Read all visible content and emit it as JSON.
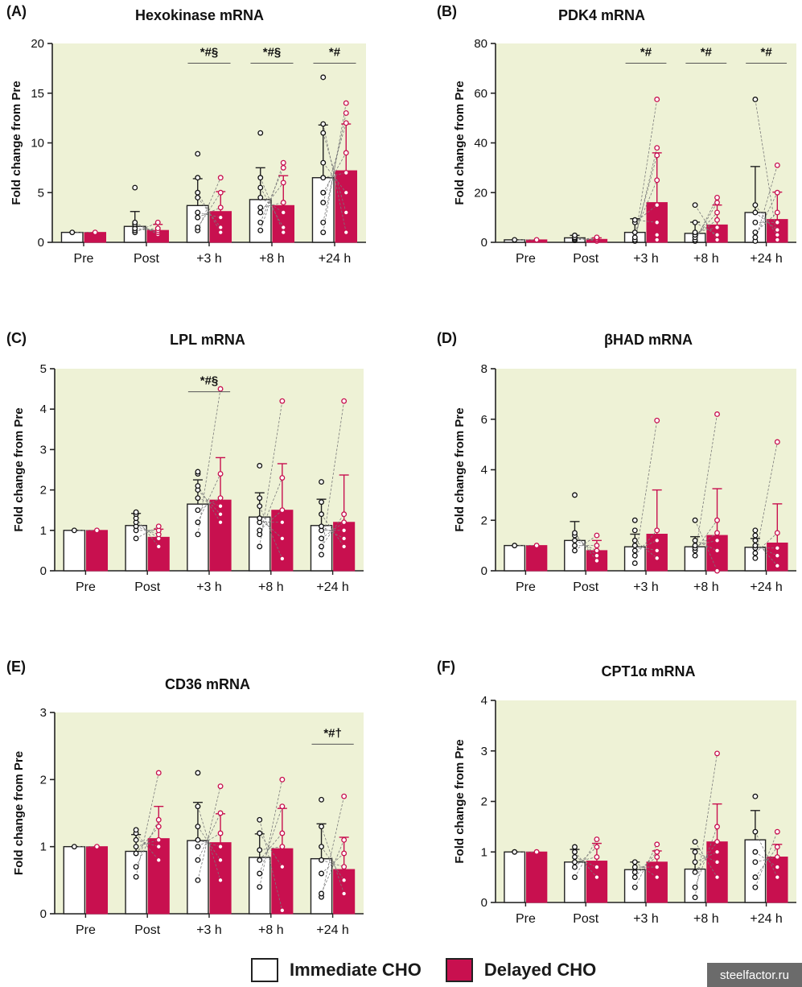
{
  "legend": {
    "immediate_label": "Immediate CHO",
    "delayed_label": "Delayed CHO",
    "immediate_color": "#ffffff",
    "delayed_color": "#c8104f"
  },
  "watermark": "steelfactor.ru",
  "colors": {
    "plot_background": "#eef2d6",
    "delayed": "#c8104f",
    "immediate_fill": "#ffffff",
    "axis": "#222222"
  },
  "chart_data": [
    {
      "id": "A",
      "panel_label": "(A)",
      "type": "bar",
      "title": "Hexokinase mRNA",
      "ylabel": "Fold change from Pre",
      "categories": [
        "Pre",
        "Post",
        "+3 h",
        "+8 h",
        "+24 h"
      ],
      "ylim": [
        0,
        20
      ],
      "yticks": [
        0,
        5,
        10,
        15,
        20
      ],
      "series": [
        {
          "name": "Immediate CHO",
          "values": [
            1.0,
            1.6,
            3.7,
            4.3,
            6.5
          ],
          "sd": [
            0,
            1.5,
            2.7,
            3.2,
            5.3
          ],
          "points": [
            [
              1.0
            ],
            [
              1.0,
              1.2,
              1.4,
              1.8,
              2.0,
              5.5
            ],
            [
              1.2,
              1.5,
              2.5,
              3.0,
              4.5,
              5.0,
              6.5,
              8.9
            ],
            [
              1.2,
              2.0,
              3.0,
              3.5,
              4.5,
              5.5,
              6.5,
              11.0
            ],
            [
              1.0,
              2.0,
              4.0,
              5.0,
              6.5,
              8.0,
              11.0,
              11.9,
              16.6
            ]
          ]
        },
        {
          "name": "Delayed CHO",
          "values": [
            1.0,
            1.2,
            3.1,
            3.7,
            7.2
          ],
          "sd": [
            0,
            0.6,
            2.0,
            3.0,
            4.7
          ],
          "points": [
            [
              1.0
            ],
            [
              0.8,
              1.0,
              1.2,
              1.4,
              2.0
            ],
            [
              1.0,
              1.5,
              2.5,
              3.5,
              5.0,
              6.5
            ],
            [
              1.0,
              1.5,
              3.0,
              4.0,
              6.0,
              7.5,
              8.0
            ],
            [
              1.0,
              3.0,
              5.0,
              7.0,
              9.0,
              12.0,
              13.0,
              14.0
            ]
          ]
        }
      ],
      "annotations": [
        {
          "text": "*#§",
          "category": 2,
          "y": 18.5
        },
        {
          "text": "*#§",
          "category": 3,
          "y": 18.5
        },
        {
          "text": "*#",
          "category": 4,
          "y": 18.5
        }
      ]
    },
    {
      "id": "B",
      "panel_label": "(B)",
      "type": "bar",
      "title": "PDK4 mRNA",
      "ylabel": "Fold change from Pre",
      "categories": [
        "Pre",
        "Post",
        "+3 h",
        "+8 h",
        "+24 h"
      ],
      "ylim": [
        0,
        80
      ],
      "yticks": [
        0,
        20,
        40,
        60,
        80
      ],
      "series": [
        {
          "name": "Immediate CHO",
          "values": [
            1.0,
            1.8,
            4.0,
            3.6,
            12.0
          ],
          "sd": [
            0,
            1.0,
            5.5,
            4.5,
            18.5
          ],
          "points": [
            [
              1.0
            ],
            [
              0.8,
              1.0,
              1.5,
              2.0,
              2.8
            ],
            [
              0.5,
              1.0,
              2.0,
              4.0,
              8.0,
              9.0
            ],
            [
              0.5,
              1.0,
              2.0,
              3.0,
              4.0,
              8.0,
              15.0
            ],
            [
              0.5,
              2.0,
              4.0,
              8.0,
              12.0,
              15.0,
              57.5
            ]
          ]
        },
        {
          "name": "Delayed CHO",
          "values": [
            1.0,
            1.2,
            16.0,
            7.0,
            9.2
          ],
          "sd": [
            0,
            0.6,
            20.0,
            8.0,
            11.0
          ],
          "points": [
            [
              1.0
            ],
            [
              0.5,
              1.0,
              1.5,
              2.0
            ],
            [
              1.0,
              3.0,
              8.0,
              15.0,
              25.0,
              35.0,
              38.0,
              57.5
            ],
            [
              1.0,
              3.0,
              6.0,
              9.0,
              12.0,
              16.0,
              18.0
            ],
            [
              1.0,
              3.0,
              5.0,
              8.0,
              12.0,
              20.0,
              31.0
            ]
          ]
        }
      ],
      "annotations": [
        {
          "text": "*#",
          "category": 2,
          "y": 74
        },
        {
          "text": "*#",
          "category": 3,
          "y": 74
        },
        {
          "text": "*#",
          "category": 4,
          "y": 74
        }
      ]
    },
    {
      "id": "C",
      "panel_label": "(C)",
      "type": "bar",
      "title": "LPL mRNA",
      "ylabel": "Fold change from Pre",
      "categories": [
        "Pre",
        "Post",
        "+3 h",
        "+8 h",
        "+24 h"
      ],
      "ylim": [
        0,
        5
      ],
      "yticks": [
        0,
        1,
        2,
        3,
        4,
        5
      ],
      "series": [
        {
          "name": "Immediate CHO",
          "values": [
            1.0,
            1.12,
            1.65,
            1.33,
            1.12
          ],
          "sd": [
            0,
            0.3,
            0.6,
            0.6,
            0.65
          ],
          "points": [
            [
              1.0
            ],
            [
              0.8,
              1.0,
              1.1,
              1.2,
              1.3,
              1.4,
              1.45
            ],
            [
              0.9,
              1.2,
              1.5,
              1.8,
              2.0,
              2.1,
              2.4,
              2.45
            ],
            [
              0.6,
              0.9,
              1.0,
              1.2,
              1.3,
              1.6,
              1.8,
              2.6
            ],
            [
              0.4,
              0.6,
              0.8,
              1.0,
              1.1,
              1.4,
              1.7,
              2.2
            ]
          ]
        },
        {
          "name": "Delayed CHO",
          "values": [
            1.0,
            0.83,
            1.75,
            1.5,
            1.2
          ],
          "sd": [
            0,
            0.2,
            1.05,
            1.15,
            1.17
          ],
          "points": [
            [
              1.0
            ],
            [
              0.6,
              0.8,
              0.9,
              1.0,
              1.1
            ],
            [
              1.2,
              1.4,
              1.6,
              1.8,
              2.4,
              4.5
            ],
            [
              0.3,
              0.8,
              1.2,
              1.5,
              2.3,
              4.2
            ],
            [
              0.6,
              0.8,
              1.0,
              1.2,
              1.4,
              4.2
            ]
          ]
        }
      ],
      "annotations": [
        {
          "text": "*#§",
          "category": 2,
          "y": 4.55
        }
      ]
    },
    {
      "id": "D",
      "panel_label": "(D)",
      "type": "bar",
      "title": "βHAD mRNA",
      "ylabel": "Fold change from Pre",
      "categories": [
        "Pre",
        "Post",
        "+3 h",
        "+8 h",
        "+24 h"
      ],
      "ylim": [
        0,
        8
      ],
      "yticks": [
        0,
        2,
        4,
        6,
        8
      ],
      "series": [
        {
          "name": "Immediate CHO",
          "values": [
            1.0,
            1.2,
            0.95,
            0.95,
            0.93
          ],
          "sd": [
            0,
            0.75,
            0.5,
            0.4,
            0.35
          ],
          "points": [
            [
              1.0
            ],
            [
              0.8,
              1.0,
              1.2,
              1.4,
              1.5,
              3.0
            ],
            [
              0.3,
              0.6,
              0.8,
              1.0,
              1.2,
              1.6,
              2.0
            ],
            [
              0.6,
              0.8,
              0.9,
              1.0,
              1.2,
              2.0
            ],
            [
              0.5,
              0.7,
              0.9,
              1.0,
              1.2,
              1.4,
              1.6
            ]
          ]
        },
        {
          "name": "Delayed CHO",
          "values": [
            1.0,
            0.8,
            1.45,
            1.4,
            1.1
          ],
          "sd": [
            0,
            0.4,
            1.75,
            1.85,
            1.55
          ],
          "points": [
            [
              1.0
            ],
            [
              0.4,
              0.6,
              0.8,
              1.0,
              1.4
            ],
            [
              0.5,
              0.8,
              1.2,
              1.6,
              5.95
            ],
            [
              0.0,
              0.8,
              1.2,
              1.5,
              2.0,
              6.2
            ],
            [
              0.2,
              0.6,
              0.9,
              1.5,
              5.1
            ]
          ]
        }
      ],
      "annotations": []
    },
    {
      "id": "E",
      "panel_label": "(E)",
      "type": "bar",
      "title": "CD36 mRNA",
      "ylabel": "Fold change from Pre",
      "categories": [
        "Pre",
        "Post",
        "+3 h",
        "+8 h",
        "+24 h"
      ],
      "ylim": [
        0,
        3
      ],
      "yticks": [
        0,
        1,
        2,
        3
      ],
      "series": [
        {
          "name": "Immediate CHO",
          "values": [
            1.0,
            0.93,
            1.09,
            0.84,
            0.82
          ],
          "sd": [
            0,
            0.25,
            0.57,
            0.35,
            0.52
          ],
          "points": [
            [
              1.0
            ],
            [
              0.55,
              0.7,
              0.9,
              1.0,
              1.1,
              1.2,
              1.25
            ],
            [
              0.5,
              0.8,
              1.0,
              1.1,
              1.3,
              1.6,
              2.1
            ],
            [
              0.4,
              0.6,
              0.8,
              0.95,
              1.2,
              1.4
            ],
            [
              0.25,
              0.3,
              0.6,
              0.8,
              1.0,
              1.3,
              1.7
            ]
          ]
        },
        {
          "name": "Delayed CHO",
          "values": [
            1.0,
            1.12,
            1.06,
            0.97,
            0.66
          ],
          "sd": [
            0,
            0.48,
            0.43,
            0.6,
            0.48
          ],
          "points": [
            [
              1.0
            ],
            [
              0.8,
              1.0,
              1.1,
              1.3,
              1.4,
              2.1
            ],
            [
              0.5,
              0.8,
              1.0,
              1.2,
              1.5,
              1.9
            ],
            [
              0.05,
              0.7,
              1.0,
              1.2,
              1.6,
              2.0
            ],
            [
              0.3,
              0.5,
              0.7,
              0.9,
              1.1,
              1.75
            ]
          ]
        }
      ],
      "annotations": [
        {
          "text": "*#†",
          "category": 4,
          "y": 2.6
        }
      ]
    },
    {
      "id": "F",
      "panel_label": "(F)",
      "type": "bar",
      "title": "CPT1α mRNA",
      "ylabel": "Fold change from Pre",
      "categories": [
        "Pre",
        "Post",
        "+3 h",
        "+8 h",
        "+24 h"
      ],
      "ylim": [
        0,
        4
      ],
      "yticks": [
        0,
        1,
        2,
        3,
        4
      ],
      "series": [
        {
          "name": "Immediate CHO",
          "values": [
            1.0,
            0.8,
            0.65,
            0.66,
            1.24
          ],
          "sd": [
            0,
            0.25,
            0.15,
            0.4,
            0.58
          ],
          "points": [
            [
              1.0
            ],
            [
              0.5,
              0.7,
              0.8,
              0.9,
              1.0,
              1.1
            ],
            [
              0.3,
              0.5,
              0.6,
              0.7,
              0.8
            ],
            [
              0.1,
              0.3,
              0.6,
              0.8,
              1.0,
              1.2
            ],
            [
              0.3,
              0.5,
              0.8,
              1.0,
              1.4,
              2.1
            ]
          ]
        },
        {
          "name": "Delayed CHO",
          "values": [
            1.0,
            0.82,
            0.8,
            1.2,
            0.9
          ],
          "sd": [
            0,
            0.35,
            0.22,
            0.75,
            0.25
          ],
          "points": [
            [
              1.0
            ],
            [
              0.5,
              0.7,
              0.9,
              1.1,
              1.25
            ],
            [
              0.5,
              0.7,
              0.9,
              1.0,
              1.15
            ],
            [
              0.5,
              0.8,
              1.0,
              1.2,
              1.5,
              2.95
            ],
            [
              0.5,
              0.7,
              0.9,
              1.1,
              1.4
            ]
          ]
        }
      ],
      "annotations": []
    }
  ]
}
